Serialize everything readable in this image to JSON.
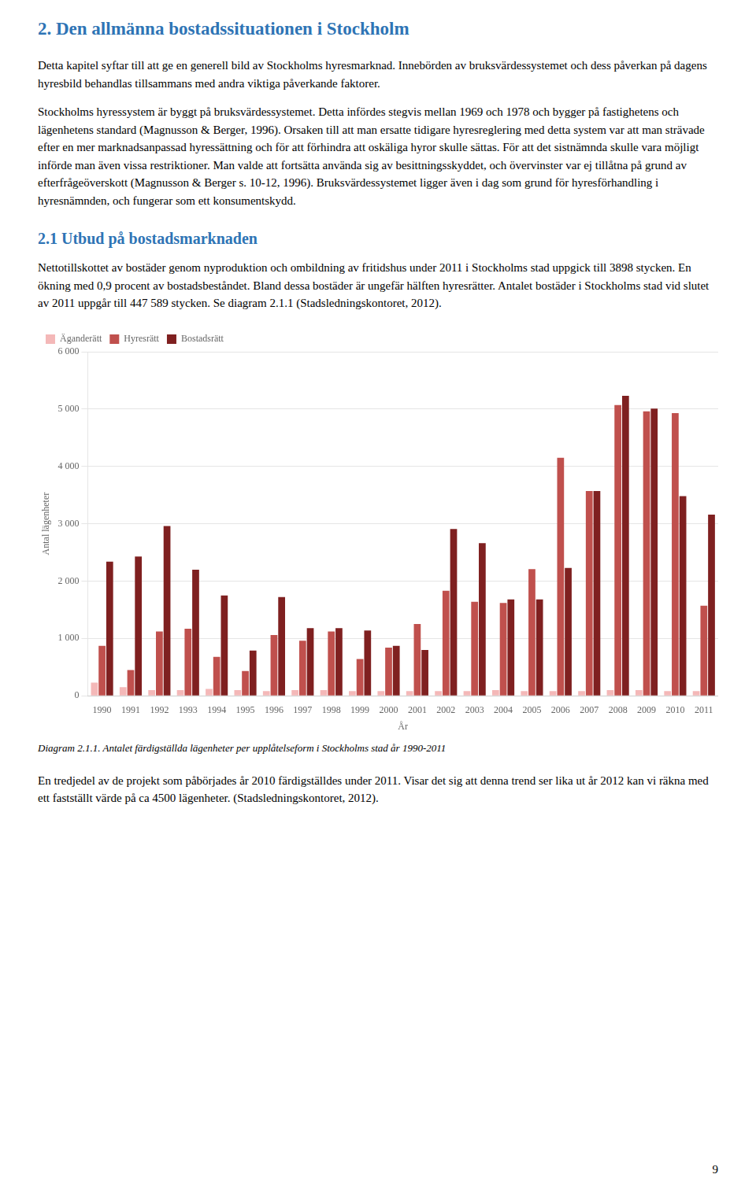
{
  "title": "2. Den allmänna bostadssituationen i Stockholm",
  "intro": [
    "Detta kapitel syftar till att ge en generell bild av Stockholms hyresmarknad. Innebörden av bruksvärdessystemet och dess påverkan på dagens hyresbild behandlas tillsammans med andra viktiga påverkande faktorer.",
    "Stockholms hyressystem är byggt på bruksvärdessystemet. Detta infördes stegvis mellan 1969 och 1978 och bygger på fastighetens och lägenhetens standard (Magnusson & Berger, 1996). Orsaken till att man ersatte tidigare hyresreglering med detta system var att man strävade efter en mer marknadsanpassad hyressättning och för att förhindra att oskäliga hyror skulle sättas. För att det sistnämnda skulle vara möjligt införde man även vissa restriktioner. Man valde att fortsätta använda sig av besittningsskyddet, och övervinster var ej tillåtna på grund av efterfrågeöverskott (Magnusson & Berger s. 10-12, 1996). Bruksvärdessystemet ligger även i dag som grund för hyresförhandling i hyresnämnden, och fungerar som ett konsumentskydd."
  ],
  "section_title": "2.1 Utbud på bostadsmarknaden",
  "section_text": [
    "Nettotillskottet av bostäder genom nyproduktion och ombildning av fritidshus under 2011 i Stockholms stad uppgick till 3898 stycken. En ökning med 0,9 procent av bostadsbeståndet. Bland dessa bostäder är ungefär hälften hyresrätter. Antalet bostäder i Stockholms stad vid slutet av 2011 uppgår till 447 589 stycken. Se diagram 2.1.1 (Stadsledningskontoret, 2012)."
  ],
  "chart_data": {
    "type": "bar",
    "x_label": "År",
    "y_label": "Antal lägenheter",
    "categories": [
      1990,
      1991,
      1992,
      1993,
      1994,
      1995,
      1996,
      1997,
      1998,
      1999,
      2000,
      2001,
      2002,
      2003,
      2004,
      2005,
      2006,
      2007,
      2008,
      2009,
      2010,
      2011
    ],
    "series": [
      {
        "name": "Äganderätt",
        "color": "#f4b8b8",
        "values": [
          230,
          150,
          100,
          100,
          120,
          100,
          80,
          100,
          100,
          80,
          80,
          80,
          80,
          80,
          100,
          80,
          80,
          80,
          100,
          100,
          80,
          80
        ]
      },
      {
        "name": "Hyresrätt",
        "color": "#c0504d",
        "values": [
          870,
          450,
          1120,
          1170,
          680,
          430,
          1060,
          960,
          1120,
          640,
          840,
          1250,
          1830,
          1640,
          1620,
          2210,
          4150,
          3570,
          5070,
          4960,
          4930,
          1570
        ]
      },
      {
        "name": "Bostadsrätt",
        "color": "#7f2020",
        "values": [
          2340,
          2430,
          2960,
          2200,
          1750,
          790,
          1720,
          1180,
          1180,
          1140,
          870,
          800,
          2910,
          2660,
          1680,
          1680,
          2230,
          3570,
          5230,
          5010,
          3480,
          3160
        ]
      }
    ],
    "ylim": [
      0,
      6000
    ],
    "yticks": [
      0,
      {
        "value": 1000,
        "label": "1 000"
      },
      {
        "value": 2000,
        "label": "2 000"
      },
      {
        "value": 3000,
        "label": "3 000"
      },
      {
        "value": 4000,
        "label": "4 000"
      },
      {
        "value": 5000,
        "label": "5 000"
      },
      {
        "value": 6000,
        "label": "6 000"
      }
    ],
    "grid": true,
    "legend": "upper left"
  },
  "caption": "Diagram 2.1.1.  Antalet färdigställda lägenheter per upplåtelseform i Stockholms stad år 1990-2011",
  "after_text": [
    "En tredjedel av de projekt som påbörjades år 2010 färdigställdes under 2011. Visar det sig att denna trend ser lika ut år 2012 kan vi räkna med ett fastställt värde på ca 4500 lägenheter. (Stadsledningskontoret, 2012)."
  ],
  "page_number": "9"
}
